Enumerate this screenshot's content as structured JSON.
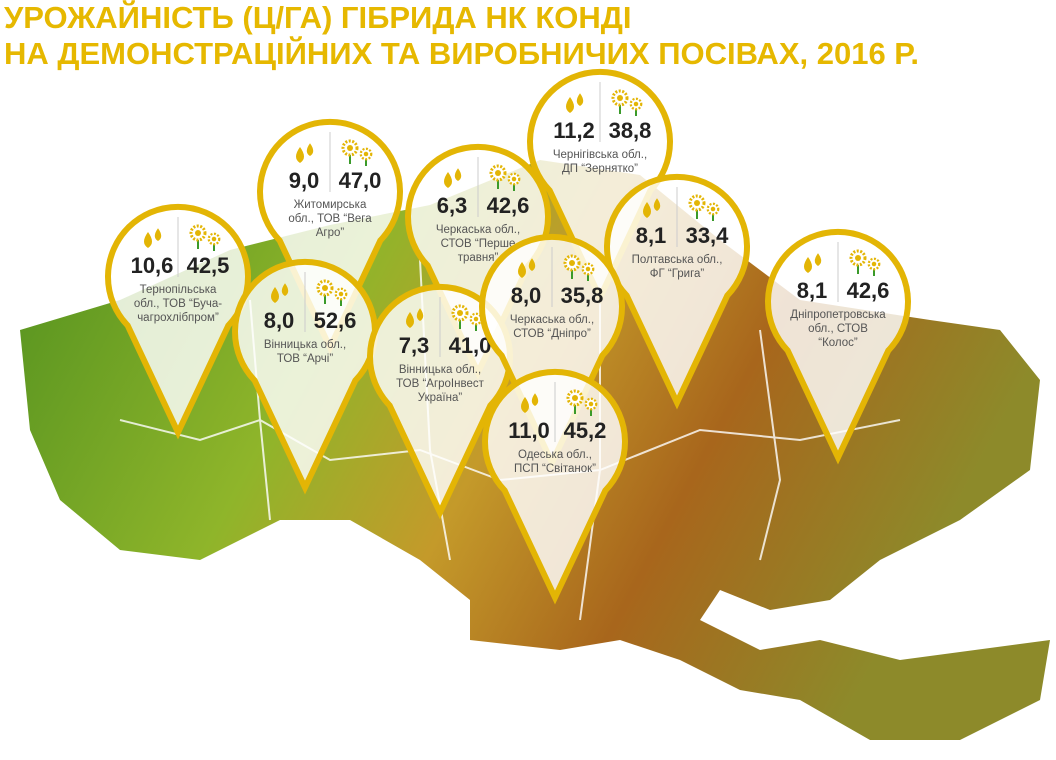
{
  "header": {
    "title_lines": [
      "УРОЖАЙНІСТЬ (Ц/ГА) ГІБРИДА НК КОНДІ",
      "НА ДЕМОНСТРАЦІЙНИХ ТА ВИРОБНИЧИХ ПОСІВАХ, 2016 Р."
    ]
  },
  "pins": [
    {
      "oil": "10,6",
      "yield": "42,5",
      "label": [
        "Тернопільська",
        "обл., ТОВ “Буча-",
        "чагрохлібпром”"
      ]
    },
    {
      "oil": "9,0",
      "yield": "47,0",
      "label": [
        "Житомирська",
        "обл., ТОВ “Вега",
        "Агро”"
      ]
    },
    {
      "oil": "6,3",
      "yield": "42,6",
      "label": [
        "Черкаська обл.,",
        "СТОВ “Перше",
        "травня”"
      ]
    },
    {
      "oil": "11,2",
      "yield": "38,8",
      "label": [
        "Чернігівська обл.,",
        "ДП “Зернятко”"
      ]
    },
    {
      "oil": "8,1",
      "yield": "33,4",
      "label": [
        "Полтавська обл.,",
        "ФГ “Грига”"
      ]
    },
    {
      "oil": "8,1",
      "yield": "42,6",
      "label": [
        "Дніпропетровська",
        "обл., СТОВ",
        "“Колос”"
      ]
    },
    {
      "oil": "8,0",
      "yield": "52,6",
      "label": [
        "Вінницька обл.,",
        "ТОВ “Арчі”"
      ]
    },
    {
      "oil": "7,3",
      "yield": "41,0",
      "label": [
        "Вінницька обл.,",
        "ТОВ “АгроІнвест",
        "Україна”"
      ]
    },
    {
      "oil": "8,0",
      "yield": "35,8",
      "label": [
        "Черкаська обл.,",
        "СТОВ “Дніпро”"
      ]
    },
    {
      "oil": "11,0",
      "yield": "45,2",
      "label": [
        "Одеська обл.,",
        "ПСП “Світанок”"
      ]
    }
  ]
}
